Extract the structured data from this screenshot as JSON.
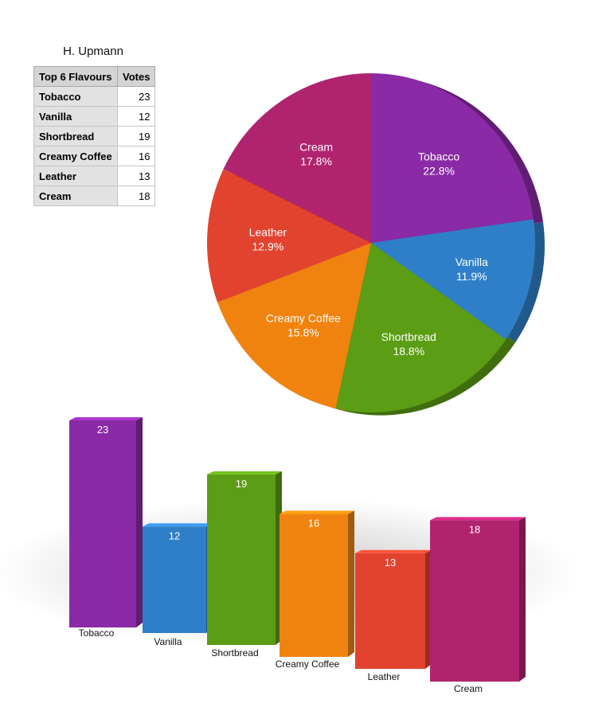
{
  "table": {
    "title": "H. Upmann",
    "header_flavour": "Top 6 Flavours",
    "header_votes": "Votes",
    "rows": [
      {
        "flavour": "Tobacco",
        "votes": "23"
      },
      {
        "flavour": "Vanilla",
        "votes": "12"
      },
      {
        "flavour": "Shortbread",
        "votes": "19"
      },
      {
        "flavour": "Creamy Coffee",
        "votes": "16"
      },
      {
        "flavour": "Leather",
        "votes": "13"
      },
      {
        "flavour": "Cream",
        "votes": "18"
      }
    ]
  },
  "chart_data": [
    {
      "type": "pie",
      "categories": [
        "Tobacco",
        "Vanilla",
        "Shortbread",
        "Creamy Coffee",
        "Leather",
        "Cream"
      ],
      "values": [
        23,
        12,
        19,
        16,
        13,
        18
      ],
      "percent_labels": [
        "22.8%",
        "11.9%",
        "18.8%",
        "15.8%",
        "12.9%",
        "17.8%"
      ],
      "colors": [
        "#8a2aa6",
        "#2f7fc8",
        "#5c9d16",
        "#f0830f",
        "#e2432e",
        "#b0246f"
      ]
    },
    {
      "type": "bar",
      "categories": [
        "Tobacco",
        "Vanilla",
        "Shortbread",
        "Creamy Coffee",
        "Leather",
        "Cream"
      ],
      "values": [
        23,
        12,
        19,
        16,
        13,
        18
      ],
      "value_labels": [
        "23",
        "12",
        "19",
        "16",
        "13",
        "18"
      ],
      "colors": [
        "#8a2aa6",
        "#2f7fc8",
        "#5c9d16",
        "#f0830f",
        "#e2432e",
        "#b0246f"
      ],
      "ylim": [
        0,
        23
      ]
    }
  ]
}
